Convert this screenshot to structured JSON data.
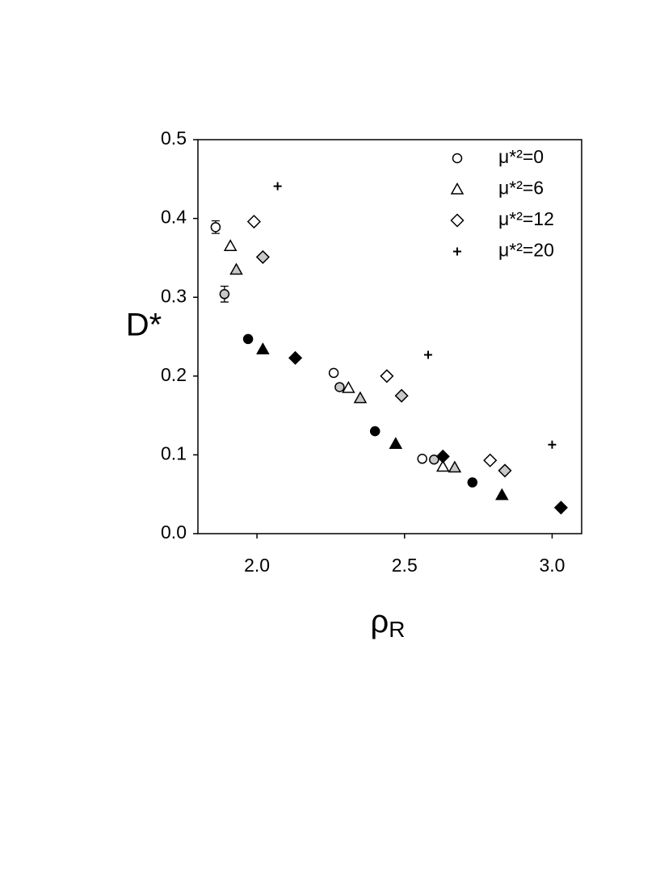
{
  "chart_data": {
    "type": "scatter",
    "x_label": "ρ",
    "x_label_sub": "R",
    "y_label": "D*",
    "xlim": [
      1.8,
      3.1
    ],
    "ylim": [
      0,
      0.5
    ],
    "xticks": [
      {
        "value": 2,
        "label": "2.0"
      },
      2.5,
      {
        "value": 3,
        "label": "3.0"
      }
    ],
    "yticks": [
      {
        "value": 0,
        "label": "0.0"
      },
      0.1,
      0.2,
      0.3,
      0.4,
      0.5
    ],
    "legend": "top-right",
    "series": [
      {
        "name": "μ*²=0",
        "marker": "circle",
        "color": "#ffffff",
        "x": [
          1.86,
          2.26,
          2.56
        ],
        "values": [
          0.389,
          0.204,
          0.095
        ],
        "errors": [
          0.008,
          null,
          null
        ]
      },
      {
        "name": "μ*²=6",
        "marker": "triangle",
        "color": "#ffffff",
        "x": [
          1.91,
          2.31,
          2.63
        ],
        "values": [
          0.365,
          0.185,
          0.085
        ]
      },
      {
        "name": "μ*²=12",
        "marker": "diamond",
        "color": "#ffffff",
        "x": [
          1.99,
          2.44,
          2.79
        ],
        "values": [
          0.396,
          0.2,
          0.093
        ]
      },
      {
        "name": "μ*²=20",
        "marker": "plus",
        "color": "#000000",
        "x": [
          2.07,
          2.58,
          3.0
        ],
        "values": [
          0.441,
          0.227,
          0.113
        ]
      },
      {
        "name": null,
        "marker": "circle",
        "color": "#c8c8c8",
        "x": [
          1.89,
          2.28,
          2.6
        ],
        "values": [
          0.304,
          0.186,
          0.094
        ],
        "errors": [
          0.01,
          null,
          null
        ]
      },
      {
        "name": null,
        "marker": "triangle",
        "color": "#c8c8c8",
        "x": [
          1.93,
          2.35,
          2.67
        ],
        "values": [
          0.335,
          0.172,
          0.084
        ]
      },
      {
        "name": null,
        "marker": "diamond",
        "color": "#c8c8c8",
        "x": [
          2.02,
          2.49,
          2.84
        ],
        "values": [
          0.351,
          0.175,
          0.08
        ]
      },
      {
        "name": null,
        "marker": "circle",
        "color": "#000000",
        "x": [
          1.97,
          2.4,
          2.73
        ],
        "values": [
          0.247,
          0.13,
          0.065
        ]
      },
      {
        "name": null,
        "marker": "triangle",
        "color": "#000000",
        "x": [
          2.02,
          2.47,
          2.83
        ],
        "values": [
          0.234,
          0.114,
          0.049
        ]
      },
      {
        "name": null,
        "marker": "diamond",
        "color": "#000000",
        "x": [
          2.13,
          2.63,
          3.03
        ],
        "values": [
          0.223,
          0.098,
          0.033
        ]
      }
    ]
  }
}
